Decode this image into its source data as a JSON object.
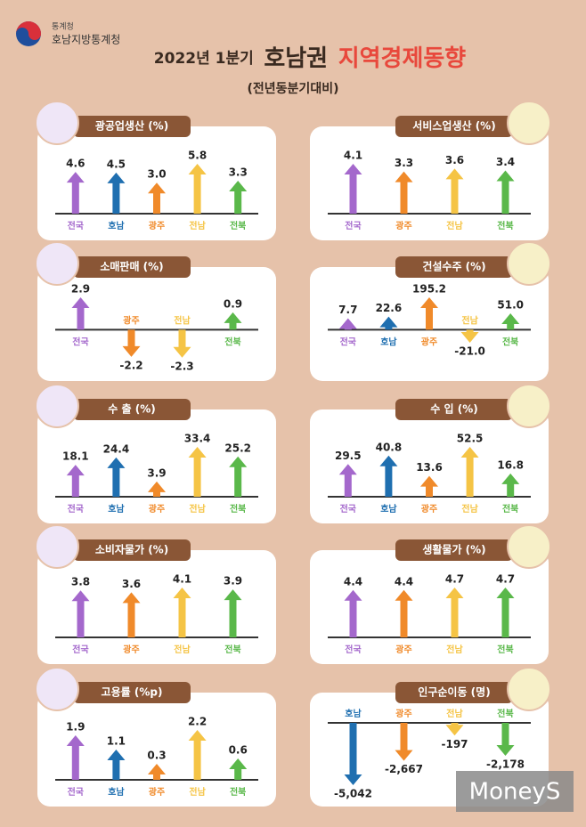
{
  "header": {
    "agency": "통계청",
    "office": "호남지방통계청",
    "period": "2022년 1분기",
    "region": "호남권",
    "title": "지역경제동향",
    "subtitle": "(전년동분기대비)"
  },
  "watermark": "MoneyS",
  "chart_data": [
    {
      "type": "bar",
      "title": "광공업생산 (%)",
      "categories": [
        "전국",
        "호남",
        "광주",
        "전남",
        "전북"
      ],
      "values": [
        4.6,
        4.5,
        3.0,
        5.8,
        3.3
      ],
      "value_labels": [
        "4.6",
        "4.5",
        "3.0",
        "5.8",
        "3.3"
      ],
      "colors": [
        "#a468cc",
        "#1f6fb0",
        "#f08a2a",
        "#f5c445",
        "#5ab84a"
      ]
    },
    {
      "type": "bar",
      "title": "서비스업생산 (%)",
      "categories": [
        "전국",
        "광주",
        "전남",
        "전북"
      ],
      "values": [
        4.1,
        3.3,
        3.6,
        3.4
      ],
      "colors": [
        "#a468cc",
        "#f08a2a",
        "#f5c445",
        "#5ab84a"
      ]
    },
    {
      "type": "bar",
      "title": "소매판매 (%)",
      "categories": [
        "전국",
        "광주",
        "전남",
        "전북"
      ],
      "values": [
        2.9,
        -2.2,
        -2.3,
        0.9
      ],
      "colors": [
        "#a468cc",
        "#f08a2a",
        "#f5c445",
        "#5ab84a"
      ]
    },
    {
      "type": "bar",
      "title": "건설수주 (%)",
      "categories": [
        "전국",
        "호남",
        "광주",
        "전남",
        "전북"
      ],
      "values": [
        7.7,
        22.6,
        195.2,
        -21.0,
        51.0
      ],
      "value_labels": [
        "7.7",
        "22.6",
        "195.2",
        "-21.0",
        "51.0"
      ],
      "colors": [
        "#a468cc",
        "#1f6fb0",
        "#f08a2a",
        "#f5c445",
        "#5ab84a"
      ]
    },
    {
      "type": "bar",
      "title": "수 출 (%)",
      "categories": [
        "전국",
        "호남",
        "광주",
        "전남",
        "전북"
      ],
      "values": [
        18.1,
        24.4,
        3.9,
        33.4,
        25.2
      ],
      "colors": [
        "#a468cc",
        "#1f6fb0",
        "#f08a2a",
        "#f5c445",
        "#5ab84a"
      ]
    },
    {
      "type": "bar",
      "title": "수 입 (%)",
      "categories": [
        "전국",
        "호남",
        "광주",
        "전남",
        "전북"
      ],
      "values": [
        29.5,
        40.8,
        13.6,
        52.5,
        16.8
      ],
      "colors": [
        "#a468cc",
        "#1f6fb0",
        "#f08a2a",
        "#f5c445",
        "#5ab84a"
      ]
    },
    {
      "type": "bar",
      "title": "소비자물가 (%)",
      "categories": [
        "전국",
        "광주",
        "전남",
        "전북"
      ],
      "values": [
        3.8,
        3.6,
        4.1,
        3.9
      ],
      "colors": [
        "#a468cc",
        "#f08a2a",
        "#f5c445",
        "#5ab84a"
      ]
    },
    {
      "type": "bar",
      "title": "생활물가 (%)",
      "categories": [
        "전국",
        "광주",
        "전남",
        "전북"
      ],
      "values": [
        4.4,
        4.4,
        4.7,
        4.7
      ],
      "colors": [
        "#a468cc",
        "#f08a2a",
        "#f5c445",
        "#5ab84a"
      ]
    },
    {
      "type": "bar",
      "title": "고용률 (%p)",
      "categories": [
        "전국",
        "호남",
        "광주",
        "전남",
        "전북"
      ],
      "values": [
        1.9,
        1.1,
        0.3,
        2.2,
        0.6
      ],
      "colors": [
        "#a468cc",
        "#1f6fb0",
        "#f08a2a",
        "#f5c445",
        "#5ab84a"
      ]
    },
    {
      "type": "bar",
      "title": "인구순이동 (명)",
      "categories": [
        "호남",
        "광주",
        "전남",
        "전북"
      ],
      "values": [
        -5042,
        -2667,
        -197,
        -2178
      ],
      "value_labels": [
        "-5,042",
        "-2,667",
        "-197",
        "-2,178"
      ],
      "colors": [
        "#1f6fb0",
        "#f08a2a",
        "#f5c445",
        "#5ab84a"
      ]
    }
  ]
}
